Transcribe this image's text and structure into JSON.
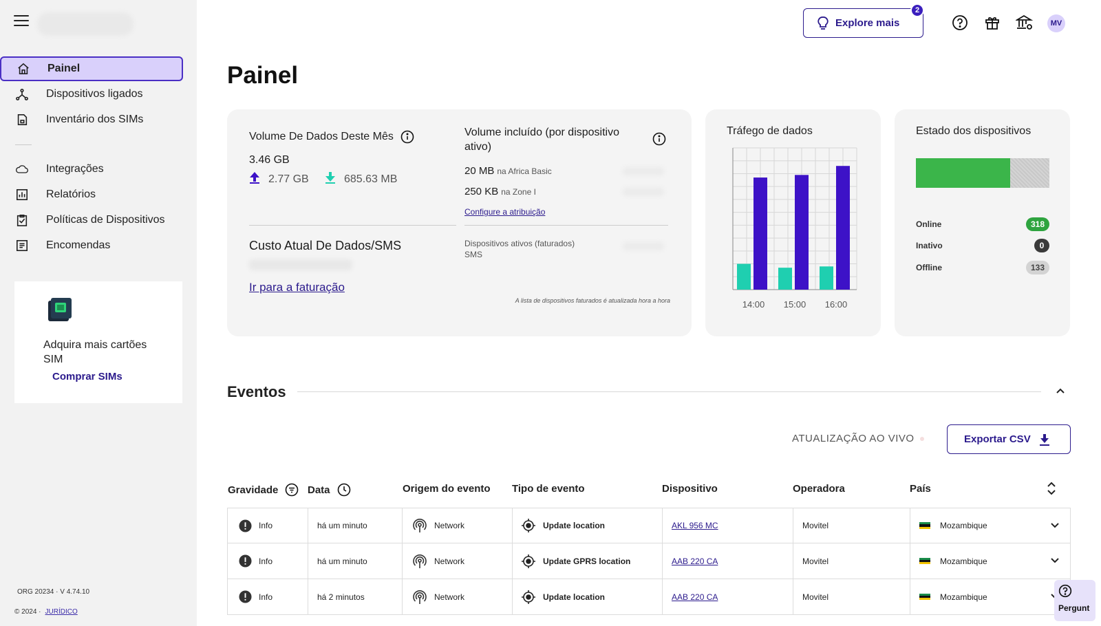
{
  "sidebar": {
    "items": [
      {
        "label": "Painel"
      },
      {
        "label": "Dispositivos ligados"
      },
      {
        "label": "Inventário dos SIMs"
      },
      {
        "label": "Integrações"
      },
      {
        "label": "Relatórios"
      },
      {
        "label": "Políticas de Dispositivos"
      },
      {
        "label": "Encomendas"
      }
    ],
    "promo": {
      "text": "Adquira mais cartões SIM",
      "button": "Comprar SIMs"
    },
    "footer": {
      "org": "ORG 20234",
      "version": "· V 4.74.10",
      "copyright": "© 2024",
      "legal": "JURÍDICO"
    }
  },
  "header": {
    "explore_label": "Explore mais",
    "explore_badge": "2",
    "avatar_initials": "MV"
  },
  "page_title": "Painel",
  "volume": {
    "title": "Volume De Dados Deste Mês",
    "total": "3.46 GB",
    "upload": "2.77 GB",
    "download": "685.63 MB"
  },
  "cost": {
    "title": "Custo Atual De Dados/SMS",
    "billing_link": "Ir para a faturação"
  },
  "included": {
    "title": "Volume incluído (por dispositivo ativo)",
    "rows": [
      {
        "value": "20 MB",
        "plan": "na Africa Basic"
      },
      {
        "value": "250 KB",
        "plan": "na Zone I"
      }
    ],
    "config_link": "Configure a atribuição",
    "billed_label": "Dispositivos ativos (faturados)",
    "billed_sms": "SMS",
    "note": "A lista de dispositivos faturados é atualizada hora a hora"
  },
  "traffic": {
    "title": "Tráfego de dados"
  },
  "chart_data": {
    "type": "bar",
    "title": "Tráfego de dados",
    "categories": [
      "14:00",
      "15:00",
      "16:00"
    ],
    "series": [
      {
        "values": [
          20,
          17,
          18
        ],
        "color": "#1fcfb0"
      },
      {
        "values": [
          87,
          89,
          96
        ],
        "color": "#3d12c7"
      }
    ],
    "ylim": [
      0,
      110
    ],
    "grid": true
  },
  "device_state": {
    "title": "Estado dos dispositivos",
    "online_fraction": 0.705,
    "rows": [
      {
        "label": "Online",
        "count": "318",
        "color": "#2ea43f"
      },
      {
        "label": "Inativo",
        "count": "0",
        "color": "#3a3a3a"
      },
      {
        "label": "Offline",
        "count": "133",
        "color": "#d3d3d3"
      }
    ]
  },
  "events": {
    "title": "Eventos",
    "live_label": "ATUALIZAÇÃO AO VIVO",
    "export_label": "Exportar CSV",
    "columns": {
      "severity": "Gravidade",
      "date": "Data",
      "origin": "Origem do evento",
      "type": "Tipo de evento",
      "device": "Dispositivo",
      "operator": "Operadora",
      "country": "País"
    },
    "rows": [
      {
        "severity": "Info",
        "date": "há um minuto",
        "origin": "Network",
        "type": "Update location",
        "device": "AKL 956 MC",
        "operator": "Movitel",
        "country": "Mozambique"
      },
      {
        "severity": "Info",
        "date": "há um minuto",
        "origin": "Network",
        "type": "Update GPRS location",
        "device": "AAB 220 CA",
        "operator": "Movitel",
        "country": "Mozambique"
      },
      {
        "severity": "Info",
        "date": "há 2 minutos",
        "origin": "Network",
        "type": "Update location",
        "device": "AAB 220 CA",
        "operator": "Movitel",
        "country": "Mozambique"
      }
    ]
  },
  "help": {
    "label": "Pergunt"
  }
}
